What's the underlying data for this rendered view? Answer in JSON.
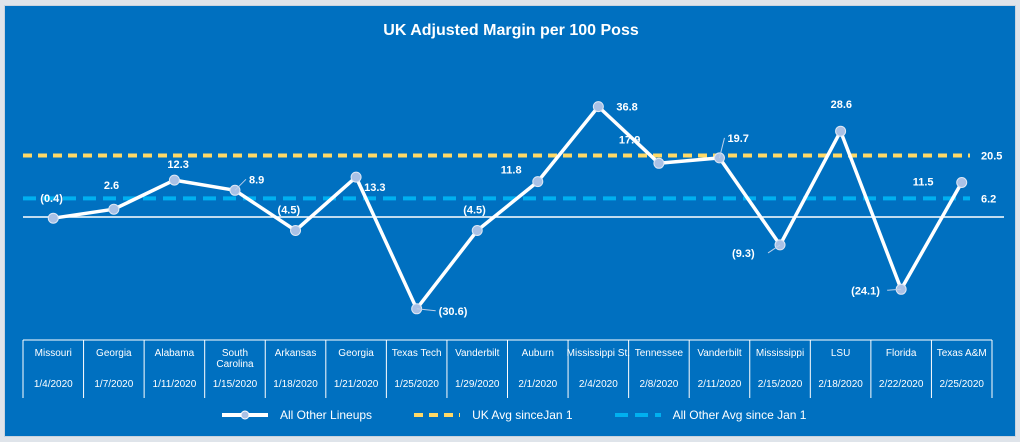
{
  "colors": {
    "background": "#0070c0",
    "line": "#ffffff",
    "marker": "#a9c1e6",
    "uk_avg": "#ffd966",
    "other_avg": "#00b0f0"
  },
  "chart_data": {
    "type": "line",
    "title": "UK Adjusted Margin per 100 Poss",
    "categories": [
      {
        "opponent": "Missouri",
        "date": "1/4/2020"
      },
      {
        "opponent": "Georgia",
        "date": "1/7/2020"
      },
      {
        "opponent": "Alabama",
        "date": "1/11/2020"
      },
      {
        "opponent": "South Carolina",
        "date": "1/15/2020"
      },
      {
        "opponent": "Arkansas",
        "date": "1/18/2020"
      },
      {
        "opponent": "Georgia",
        "date": "1/21/2020"
      },
      {
        "opponent": "Texas Tech",
        "date": "1/25/2020"
      },
      {
        "opponent": "Vanderbilt",
        "date": "1/29/2020"
      },
      {
        "opponent": "Auburn",
        "date": "2/1/2020"
      },
      {
        "opponent": "Mississippi St.",
        "date": "2/4/2020"
      },
      {
        "opponent": "Tennessee",
        "date": "2/8/2020"
      },
      {
        "opponent": "Vanderbilt",
        "date": "2/11/2020"
      },
      {
        "opponent": "Mississippi",
        "date": "2/15/2020"
      },
      {
        "opponent": "LSU",
        "date": "2/18/2020"
      },
      {
        "opponent": "Florida",
        "date": "2/22/2020"
      },
      {
        "opponent": "Texas A&M",
        "date": "2/25/2020"
      }
    ],
    "series": [
      {
        "name": "All Other Lineups",
        "values": [
          -0.4,
          2.6,
          12.3,
          8.9,
          -4.5,
          13.3,
          -30.6,
          -4.5,
          11.8,
          36.8,
          17.9,
          19.7,
          -9.3,
          28.6,
          -24.1,
          11.5
        ],
        "labels": [
          "(0.4)",
          "2.6",
          "12.3",
          "8.9",
          "(4.5)",
          "13.3",
          "(30.6)",
          "(4.5)",
          "11.8",
          "36.8",
          "17.9",
          "19.7",
          "(9.3)",
          "28.6",
          "(24.1)",
          "11.5"
        ]
      },
      {
        "name": "UK Avg sinceJan 1",
        "value": 20.5,
        "label": "20.5"
      },
      {
        "name": "All Other Avg since Jan 1",
        "value": 6.2,
        "label": "6.2"
      }
    ]
  }
}
